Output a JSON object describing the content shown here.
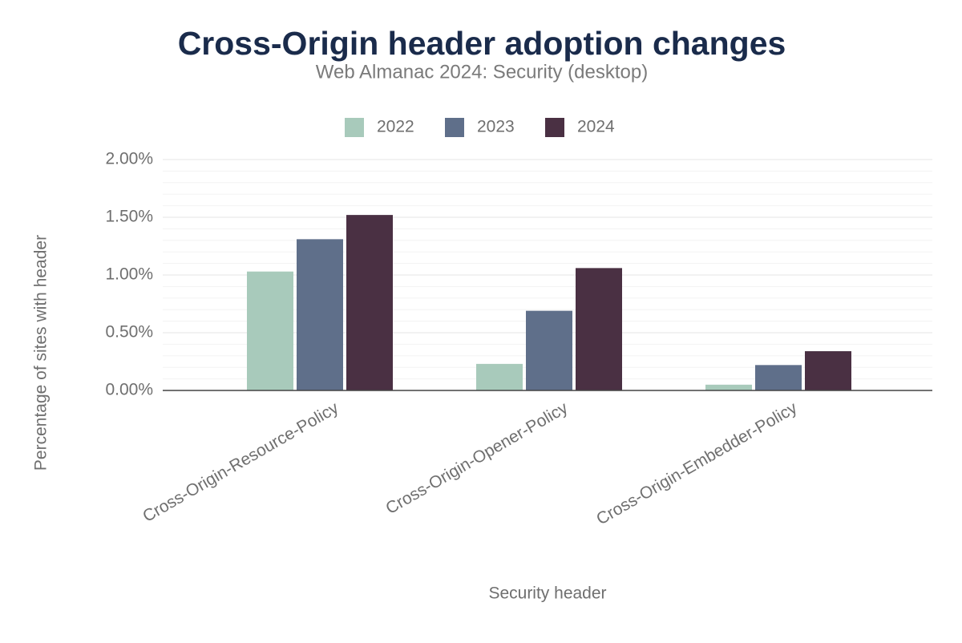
{
  "chart_data": {
    "type": "bar",
    "title": "Cross-Origin header adoption changes",
    "subtitle": "Web Almanac 2024: Security (desktop)",
    "x_label": "Security header",
    "y_label": "Percentage of sites with header",
    "categories": [
      "Cross-Origin-Resource-Policy",
      "Cross-Origin-Opener-Policy",
      "Cross-Origin-Embedder-Policy"
    ],
    "series": [
      {
        "name": "2022",
        "color": "#a8cabb",
        "values": [
          1.03,
          0.23,
          0.05
        ]
      },
      {
        "name": "2023",
        "color": "#5f6f8a",
        "values": [
          1.31,
          0.69,
          0.22
        ]
      },
      {
        "name": "2024",
        "color": "#4a3043",
        "values": [
          1.52,
          1.06,
          0.34
        ]
      }
    ],
    "ylim": [
      0,
      2
    ],
    "yticks": [
      {
        "value": 0,
        "label": "0.00%"
      },
      {
        "value": 0.5,
        "label": "0.50%"
      },
      {
        "value": 1,
        "label": "1.00%"
      },
      {
        "value": 1.5,
        "label": "1.50%"
      },
      {
        "value": 2,
        "label": "2.00%"
      }
    ],
    "grid": true,
    "minor_grid": true,
    "legend": "top"
  }
}
